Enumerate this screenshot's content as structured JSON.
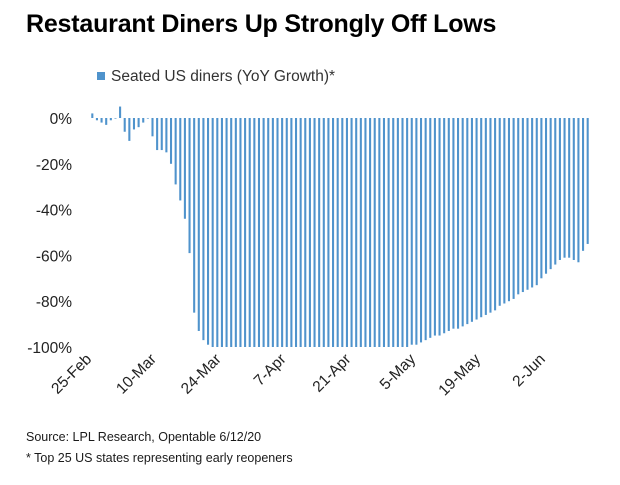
{
  "colors": {
    "bar": "#4f93cc",
    "text": "#222222"
  },
  "source": "Source: LPL Research, Opentable 6/12/20",
  "footnote": "* Top 25 US states representing early reopeners",
  "chart_data": {
    "type": "bar",
    "title": "Restaurant Diners Up Strongly Off Lows",
    "legend": "Seated US diners (YoY Growth)*",
    "legend_position": "top-left",
    "xlabel": "",
    "ylabel": "",
    "ylim": [
      -100,
      0
    ],
    "yticks": [
      0,
      -20,
      -40,
      -60,
      -80,
      -100
    ],
    "ytick_labels": [
      "0%",
      "-20%",
      "-40%",
      "-60%",
      "-80%",
      "-100%"
    ],
    "xtick_labels": [
      {
        "label": "25-Feb",
        "index": 0
      },
      {
        "label": "10-Mar",
        "index": 14
      },
      {
        "label": "24-Mar",
        "index": 28
      },
      {
        "label": "7-Apr",
        "index": 42
      },
      {
        "label": "21-Apr",
        "index": 56
      },
      {
        "label": "5-May",
        "index": 70
      },
      {
        "label": "19-May",
        "index": 84
      },
      {
        "label": "2-Jun",
        "index": 98
      }
    ],
    "values": [
      2,
      -1,
      -2,
      -3,
      -1,
      0,
      5,
      -6,
      -10,
      -5,
      -4,
      -2,
      0,
      -8,
      -14,
      -14,
      -15,
      -20,
      -29,
      -36,
      -44,
      -59,
      -85,
      -93,
      -97,
      -99,
      -100,
      -100,
      -100,
      -100,
      -100,
      -100,
      -100,
      -100,
      -100,
      -100,
      -100,
      -100,
      -100,
      -100,
      -100,
      -100,
      -100,
      -100,
      -100,
      -100,
      -100,
      -100,
      -100,
      -100,
      -100,
      -100,
      -100,
      -100,
      -100,
      -100,
      -100,
      -100,
      -100,
      -100,
      -100,
      -100,
      -100,
      -100,
      -100,
      -100,
      -100,
      -100,
      -100,
      -99,
      -99,
      -98,
      -97,
      -96,
      -95,
      -95,
      -94,
      -93,
      -92,
      -92,
      -91,
      -90,
      -89,
      -88,
      -87,
      -86,
      -85,
      -84,
      -82,
      -81,
      -80,
      -79,
      -77,
      -76,
      -75,
      -74,
      -73,
      -70,
      -68,
      -66,
      -64,
      -62,
      -61,
      -61,
      -62,
      -63,
      -58,
      -55
    ]
  }
}
